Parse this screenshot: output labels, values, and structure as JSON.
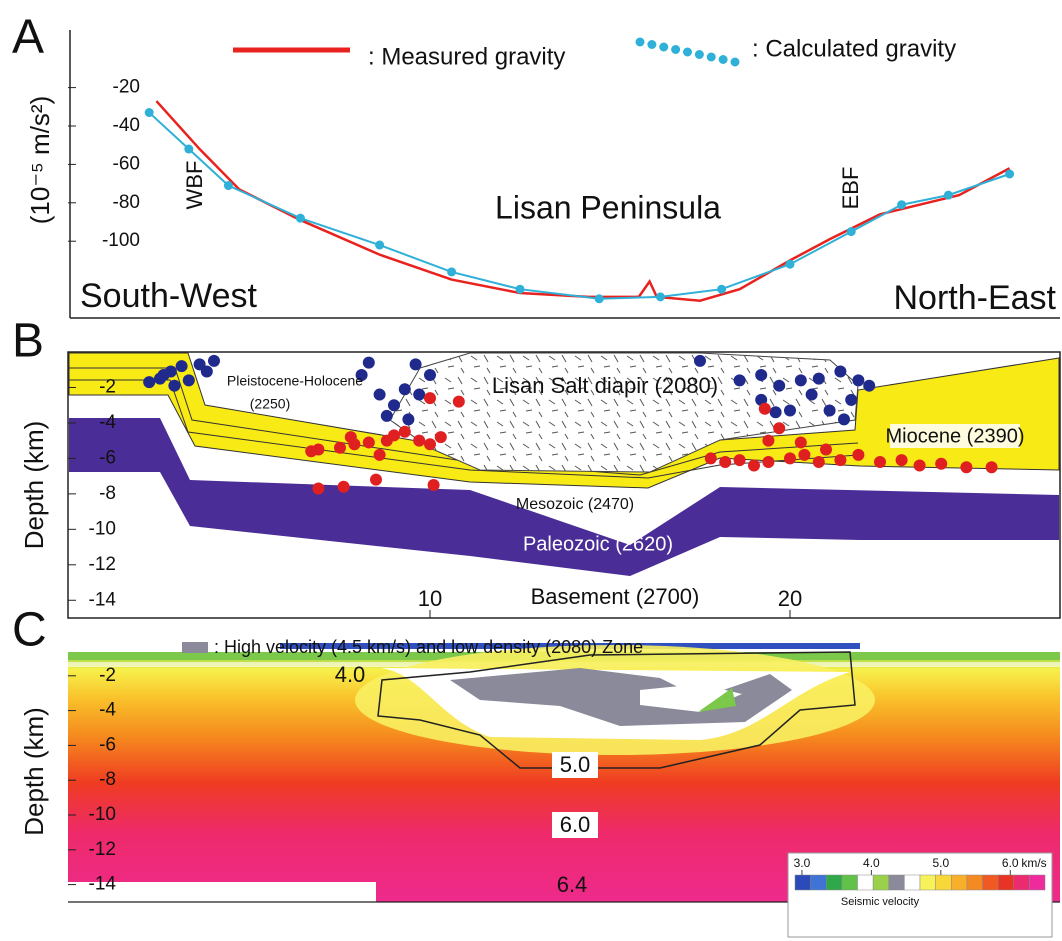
{
  "chart_data": [
    {
      "type": "line",
      "panel": "A",
      "ylabel": "(10⁻⁵ m/s²)",
      "xlim": [
        0,
        27.5
      ],
      "ylim": [
        -140,
        10
      ],
      "yticks": [
        -20,
        -40,
        -60,
        -80,
        -100
      ],
      "annotations": [
        "WBF",
        "Lisan Peninsula",
        "EBF",
        "South-West",
        "North-East"
      ],
      "series": [
        {
          "name": ": Measured gravity",
          "color": "#e8231f",
          "x": [
            2.4,
            3.6,
            4.7,
            6.4,
            8.6,
            10.6,
            12.5,
            14.4,
            15.8,
            16.1,
            16.3,
            17.5,
            18.6,
            20.0,
            21.1,
            22.5,
            24.7,
            26.1
          ],
          "values": [
            -27,
            -52,
            -73,
            -89,
            -107,
            -120,
            -127,
            -129,
            -129,
            -121,
            -129,
            -131,
            -125,
            -110,
            -99,
            -86,
            -76,
            -62
          ]
        },
        {
          "name": ": Calculated gravity",
          "color": "#2fb0d8",
          "marker": "circle",
          "x": [
            2.2,
            3.3,
            4.4,
            6.4,
            8.6,
            10.6,
            12.5,
            14.7,
            16.4,
            18.1,
            20.0,
            21.7,
            23.1,
            24.4,
            26.1
          ],
          "values": [
            -33,
            -52,
            -71,
            -88,
            -102,
            -116,
            -125,
            -130,
            -129,
            -125,
            -112,
            -95,
            -81,
            -76,
            -65
          ]
        }
      ]
    },
    {
      "type": "section",
      "panel": "B",
      "ylabel": "Depth (km)",
      "xlim": [
        0,
        27.5
      ],
      "ylim": [
        -15,
        0
      ],
      "yticks": [
        -2,
        -4,
        -6,
        -8,
        -10,
        -12,
        -14
      ],
      "xticks": [
        10,
        20
      ],
      "labels": [
        "Pleistocene-Holocene",
        "(2250)",
        "Lisan Salt diapir (2080)",
        "Miocene (2390)",
        "Mesozoic (2470)",
        "Paleozoic (2620)",
        "Basement (2700)"
      ],
      "series": [
        {
          "color": "#1f2a8c",
          "x": [
            2.2,
            2.5,
            2.8,
            3.1,
            2.9,
            3.3,
            3.6,
            3.8,
            4.0,
            2.6,
            8.1,
            8.3,
            8.6,
            8.8,
            9.0,
            9.3,
            9.4,
            9.7,
            9.6,
            10.0,
            17.5,
            18.6,
            19.2,
            19.7,
            20.3,
            20.8,
            21.4,
            21.9,
            22.2,
            21.7,
            20.6,
            20.0,
            21.1,
            21.5,
            19.2,
            19.6
          ],
          "values": [
            -1.7,
            -1.5,
            -1.1,
            -0.8,
            -1.9,
            -1.6,
            -0.7,
            -1.1,
            -0.5,
            -1.3,
            -1.3,
            -0.6,
            -2.4,
            -3.6,
            -3.0,
            -2.1,
            -3.8,
            -2.4,
            -0.7,
            -1.3,
            -0.5,
            -1.6,
            -1.3,
            -1.9,
            -1.6,
            -1.5,
            -1.1,
            -1.6,
            -1.9,
            -2.7,
            -2.4,
            -3.3,
            -3.3,
            -3.8,
            -2.7,
            -3.4
          ]
        },
        {
          "color": "#e02020",
          "x": [
            6.7,
            6.9,
            7.5,
            7.9,
            8.3,
            8.8,
            9.0,
            9.3,
            9.7,
            10.0,
            10.3,
            7.8,
            8.6,
            6.9,
            7.6,
            8.5,
            10.1,
            10.8,
            10.0,
            17.8,
            18.2,
            18.6,
            19.0,
            19.4,
            20.0,
            20.4,
            20.8,
            21.4,
            19.4,
            19.7,
            20.3,
            21.0,
            21.9,
            22.5,
            23.1,
            23.6,
            24.2,
            24.9,
            25.6,
            19.3
          ],
          "values": [
            -5.6,
            -5.5,
            -5.4,
            -5.2,
            -5.1,
            -5.0,
            -4.7,
            -4.5,
            -5.0,
            -5.2,
            -4.8,
            -4.8,
            -5.8,
            -7.7,
            -7.6,
            -7.2,
            -7.5,
            -2.8,
            -2.6,
            -6.0,
            -6.2,
            -6.1,
            -6.4,
            -6.2,
            -6.0,
            -5.8,
            -6.2,
            -6.1,
            -5.0,
            -4.3,
            -5.1,
            -5.5,
            -5.8,
            -6.2,
            -6.1,
            -6.4,
            -6.3,
            -6.5,
            -6.5,
            -3.2
          ]
        }
      ]
    },
    {
      "type": "velocity",
      "panel": "C",
      "ylabel": "Depth (km)",
      "ylim": [
        -15,
        0
      ],
      "yticks": [
        -2,
        -4,
        -6,
        -8,
        -10,
        -12,
        -14
      ],
      "legend": ": High velocity (4.5 km/s) and low density (2080) Zone",
      "legend_color": "#8a8a9a",
      "contour_labels": [
        "4.0",
        "5.0",
        "6.0",
        "6.4"
      ],
      "colorbar": {
        "title": "Seismic velocity",
        "unit": "km/s",
        "lim": [
          2.9,
          6.5
        ],
        "colors": [
          "#2b4bb8",
          "#3f74d6",
          "#2fa84a",
          "#61c24a",
          "#ffffff",
          "#9ad04a",
          "#8a8a9a",
          "#ffffff",
          "#f8f25a",
          "#f8d838",
          "#f8b02a",
          "#f48a22",
          "#f05a22",
          "#e83424",
          "#ec2a70",
          "#ee2a9c"
        ],
        "ticks": [
          {
            "value": 3,
            "label": "3.0"
          },
          {
            "value": 4,
            "label": "4.0"
          },
          {
            "value": 5,
            "label": "5.0"
          },
          {
            "value": 6,
            "label": "6.0"
          }
        ]
      }
    }
  ]
}
